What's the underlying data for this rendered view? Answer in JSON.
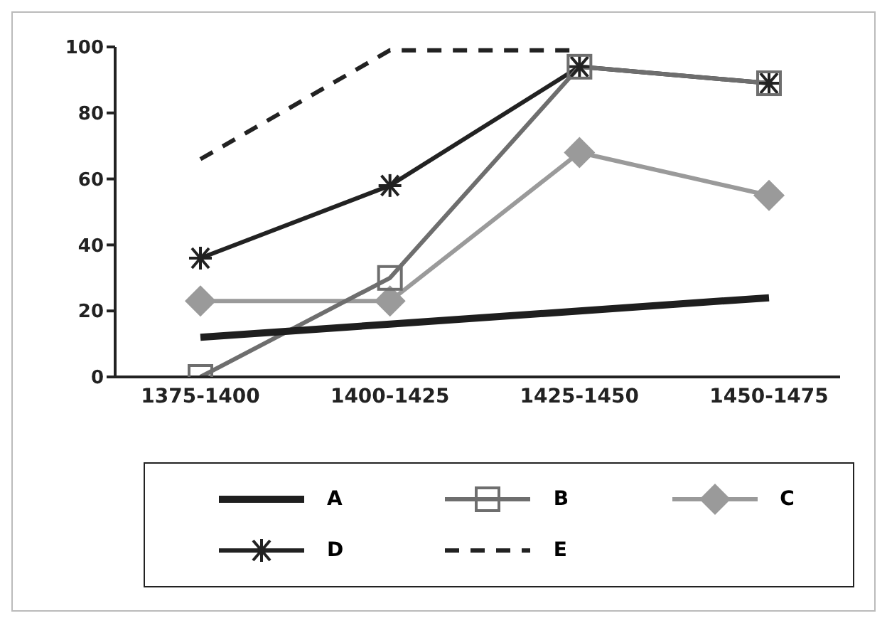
{
  "chart_data": {
    "type": "line",
    "categories": [
      "1375-1400",
      "1400-1425",
      "1425-1450",
      "1450-1475"
    ],
    "series": [
      {
        "name": "A",
        "color": "#1e1e1e",
        "values": [
          12,
          16,
          20,
          24
        ],
        "marker": "none",
        "line_style": "solid"
      },
      {
        "name": "B",
        "color": "#6e6e6e",
        "values": [
          0,
          30,
          94,
          89
        ],
        "marker": "square",
        "line_style": "solid"
      },
      {
        "name": "C",
        "color": "#9a9a9a",
        "values": [
          23,
          23,
          68,
          55
        ],
        "marker": "diamond",
        "line_style": "solid"
      },
      {
        "name": "D",
        "color": "#222222",
        "values": [
          36,
          58,
          94,
          89
        ],
        "marker": "cross",
        "line_style": "solid"
      },
      {
        "name": "E",
        "color": "#222222",
        "values": [
          66,
          99,
          99,
          null
        ],
        "marker": "none",
        "line_style": "dashed"
      }
    ],
    "ylim": [
      0,
      100
    ],
    "yticks": [
      0,
      20,
      40,
      60,
      80,
      100
    ],
    "legend": "bottom"
  }
}
